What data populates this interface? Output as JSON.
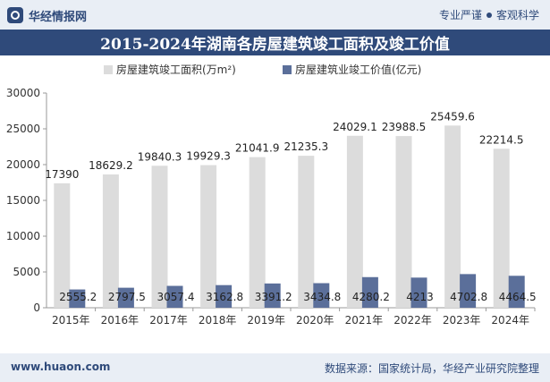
{
  "header": {
    "logo_text": "华经情报网",
    "tagline_left": "专业严谨",
    "tagline_right": "客观科学"
  },
  "footer": {
    "website": "www.huaon.com",
    "source": "数据来源：国家统计局，华经产业研究院整理"
  },
  "chart_data": {
    "type": "bar",
    "title": "2015-2024年湖南各房屋建筑竣工面积及竣工价值",
    "categories": [
      "2015年",
      "2016年",
      "2017年",
      "2018年",
      "2019年",
      "2020年",
      "2021年",
      "2022年",
      "2023年",
      "2024年"
    ],
    "series": [
      {
        "name": "房屋建筑竣工面积(万m²)",
        "color": "#dcdcdc",
        "values": [
          17390,
          18629.2,
          19840.3,
          19929.3,
          21041.9,
          21235.3,
          24029.1,
          23988.5,
          25459.6,
          22214.5
        ],
        "labels": [
          "17390",
          "18629.2",
          "19840.3",
          "19929.3",
          "21041.9",
          "21235.3",
          "24029.1",
          "23988.5",
          "25459.6",
          "22214.5"
        ]
      },
      {
        "name": "房屋建筑业竣工价值(亿元)",
        "color": "#5b6f9a",
        "values": [
          2555.2,
          2797.5,
          3057.4,
          3162.8,
          3391.2,
          3434.8,
          4280.2,
          4213,
          4702.8,
          4464.5
        ],
        "labels": [
          "2555.2",
          "2797.5",
          "3057.4",
          "3162.8",
          "3391.2",
          "3434.8",
          "4280.2",
          "4213",
          "4702.8",
          "4464.5"
        ]
      }
    ],
    "ylim": [
      0,
      30000
    ],
    "yticks": [
      "0",
      "5000",
      "10000",
      "15000",
      "20000",
      "25000",
      "30000"
    ],
    "grid": false,
    "legend": "top-center"
  }
}
